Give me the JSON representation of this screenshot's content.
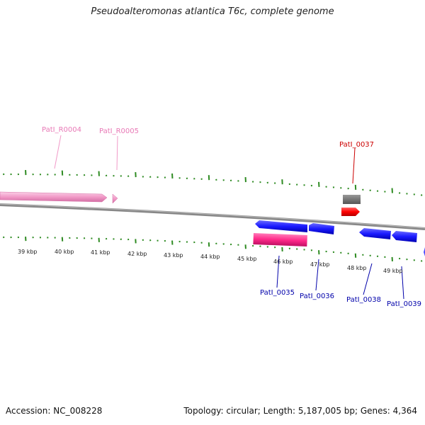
{
  "title": "Pseudoalteromonas atlantica T6c, complete genome",
  "footer": {
    "accession": "Accession: NC_008228",
    "stats": "Topology: circular; Length: 5,187,005 bp; Genes: 4,364"
  },
  "colors": {
    "rrna": "#f19ac8",
    "rrna_label": "#e879b6",
    "forward_red": "#ff0000",
    "forward_red_label": "#cc0000",
    "gray_feature": "#777777",
    "reverse_blue": "#1a1aff",
    "reverse_label": "#0000aa",
    "magenta": "#ff2a8a",
    "ticks": "#2e8b22",
    "backbone": "#888888"
  },
  "scale_labels": [
    "39 kbp",
    "40 kbp",
    "41 kbp",
    "42 kbp",
    "43 kbp",
    "44 kbp",
    "45 kbp",
    "46 kbp",
    "47 kbp",
    "48 kbp",
    "49 kbp"
  ],
  "features": [
    {
      "id": "PatI_R0004",
      "label": "PatI_R0004",
      "type": "rrna-arrow"
    },
    {
      "id": "PatI_R0005",
      "label": "PatI_R0005",
      "type": "rrna-small"
    },
    {
      "id": "PatI_0037",
      "label": "PatI_0037",
      "type": "forward"
    },
    {
      "id": "PatI_0035",
      "label": "PatI_0035",
      "type": "reverse"
    },
    {
      "id": "PatI_0036",
      "label": "PatI_0036",
      "type": "reverse"
    },
    {
      "id": "PatI_0038",
      "label": "PatI_0038",
      "type": "reverse"
    },
    {
      "id": "PatI_0039",
      "label": "PatI_0039",
      "type": "reverse"
    }
  ]
}
